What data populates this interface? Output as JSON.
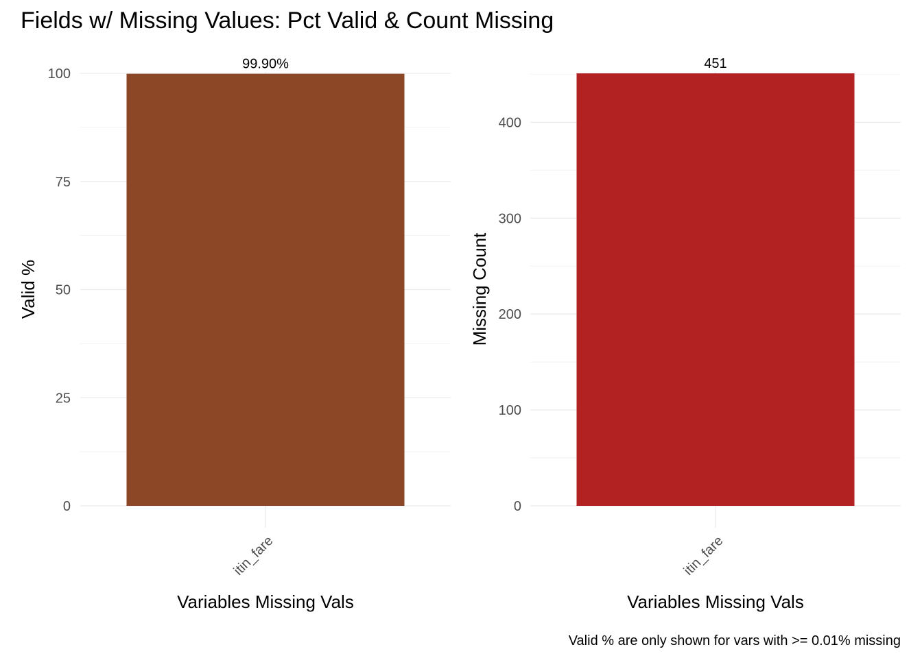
{
  "title": "Fields w/ Missing Values: Pct Valid & Count Missing",
  "caption": "Valid % are only shown for vars with >= 0.01% missing",
  "chart_data": [
    {
      "type": "bar",
      "categories": [
        "itin_fare"
      ],
      "values": [
        99.9
      ],
      "data_labels": [
        "99.90%"
      ],
      "xlabel": "Variables Missing Vals",
      "ylabel": "Valid %",
      "ylim": [
        0,
        100
      ],
      "yticks": [
        0,
        25,
        50,
        75,
        100
      ],
      "color": "#8B4726",
      "grid": true
    },
    {
      "type": "bar",
      "categories": [
        "itin_fare"
      ],
      "values": [
        451
      ],
      "data_labels": [
        "451"
      ],
      "xlabel": "Variables Missing Vals",
      "ylabel": "Missing Count",
      "ylim": [
        0,
        451
      ],
      "yticks": [
        0,
        100,
        200,
        300,
        400
      ],
      "color": "#B22222",
      "grid": true
    }
  ]
}
